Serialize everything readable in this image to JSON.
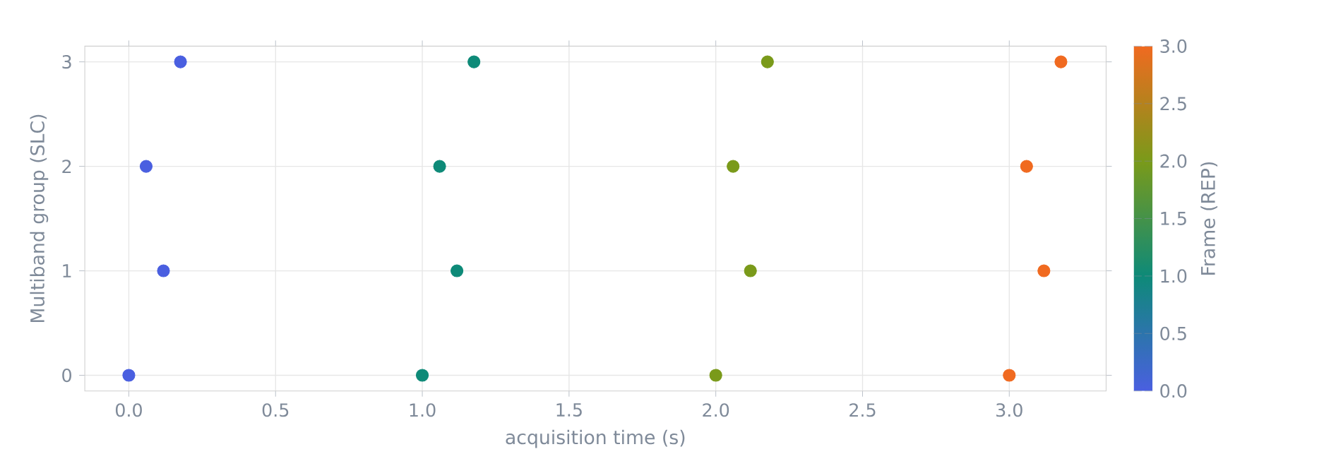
{
  "chart_data": {
    "type": "scatter",
    "xlabel": "acquisition time (s)",
    "ylabel": "Multiband group (SLC)",
    "clabel": "Frame (REP)",
    "x": [
      0.0,
      0.118,
      0.059,
      0.176,
      1.0,
      1.118,
      1.059,
      1.176,
      2.0,
      2.118,
      2.059,
      2.176,
      3.0,
      3.118,
      3.059,
      3.176
    ],
    "values": [
      0,
      1,
      2,
      3,
      0,
      1,
      2,
      3,
      0,
      1,
      2,
      3,
      0,
      1,
      2,
      3
    ],
    "cvalues": [
      0,
      0,
      0,
      0,
      1,
      1,
      1,
      1,
      2,
      2,
      2,
      2,
      3,
      3,
      3,
      3
    ],
    "colors": [
      "#4a5fe0",
      "#4a5fe0",
      "#4a5fe0",
      "#4a5fe0",
      "#0e8a78",
      "#0e8a78",
      "#0e8a78",
      "#0e8a78",
      "#7a9a1a",
      "#7a9a1a",
      "#7a9a1a",
      "#7a9a1a",
      "#f06a20",
      "#f06a20",
      "#f06a20",
      "#f06a20"
    ],
    "xlim": [
      -0.15,
      3.33
    ],
    "ylim": [
      -0.15,
      3.15
    ],
    "xticks": [
      {
        "value": 0,
        "label": "0.0"
      },
      {
        "value": 0.5,
        "label": "0.5"
      },
      {
        "value": 1,
        "label": "1.0"
      },
      {
        "value": 1.5,
        "label": "1.5"
      },
      {
        "value": 2,
        "label": "2.0"
      },
      {
        "value": 2.5,
        "label": "2.5"
      },
      {
        "value": 3,
        "label": "3.0"
      }
    ],
    "yticks": [
      0,
      1,
      2,
      3
    ],
    "clim": [
      0,
      3
    ],
    "cticks": [
      {
        "value": 0,
        "label": "0.0"
      },
      {
        "value": 0.5,
        "label": "0.5"
      },
      {
        "value": 1,
        "label": "1.0"
      },
      {
        "value": 1.5,
        "label": "1.5"
      },
      {
        "value": 2,
        "label": "2.0"
      },
      {
        "value": 2.5,
        "label": "2.5"
      },
      {
        "value": 3,
        "label": "3.0"
      }
    ],
    "grid": true,
    "marker": "circle"
  }
}
